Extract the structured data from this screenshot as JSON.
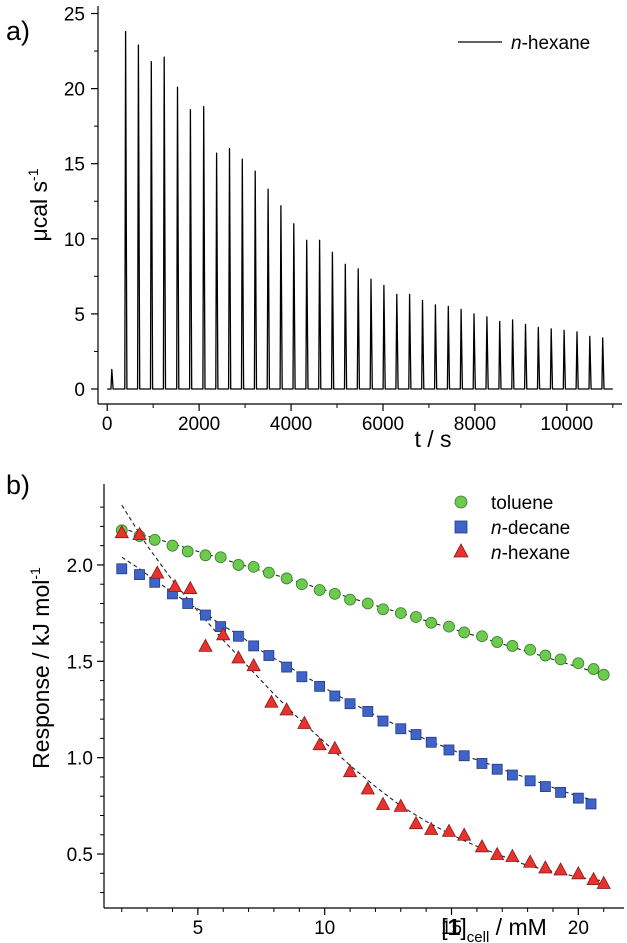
{
  "panel_a_label": "a)",
  "panel_b_label": "b)",
  "colors": {
    "toluene": "#6ccb4f",
    "n_decane": "#3f63c8",
    "n_hexane": "#e8322e",
    "line": "#000000"
  },
  "chart_data": [
    {
      "type": "line",
      "ylabel": "μcal s-1",
      "ylabel_parts": {
        "base": "μcal s",
        "sup": "-1"
      },
      "xlabel": "t / s",
      "xlim": [
        -200,
        11200
      ],
      "ylim": [
        -1,
        25.5
      ],
      "xticks": [
        0,
        2000,
        4000,
        6000,
        8000,
        10000
      ],
      "yticks": [
        0,
        5,
        10,
        15,
        20,
        25
      ],
      "grid": false,
      "legend_position": "top-right",
      "series": [
        {
          "name": "n-hexane",
          "name_parts": {
            "italic": "n",
            "rest": "-hexane"
          },
          "peak_times": [
            100,
            400,
            680,
            960,
            1240,
            1530,
            1810,
            2100,
            2380,
            2660,
            2940,
            3220,
            3500,
            3780,
            4060,
            4340,
            4620,
            4900,
            5180,
            5460,
            5740,
            6020,
            6300,
            6580,
            6860,
            7140,
            7420,
            7700,
            7980,
            8260,
            8540,
            8820,
            9100,
            9380,
            9660,
            9940,
            10220,
            10500,
            10780
          ],
          "peak_heights": [
            1.3,
            23.8,
            22.9,
            21.8,
            22.1,
            20.1,
            18.6,
            18.8,
            15.7,
            16.0,
            15.3,
            14.5,
            13.3,
            12.2,
            11.0,
            9.9,
            9.9,
            9.1,
            8.3,
            8.0,
            7.3,
            6.9,
            6.3,
            6.3,
            5.9,
            5.6,
            5.5,
            5.3,
            5.0,
            4.8,
            4.5,
            4.6,
            4.3,
            4.1,
            4.0,
            3.9,
            3.8,
            3.5,
            3.4
          ],
          "baseline": 0.0
        }
      ]
    },
    {
      "type": "scatter",
      "ylabel": "Response / kJ mol-1",
      "ylabel_parts": {
        "base": "Response / kJ mol",
        "sup": "-1"
      },
      "xlabel": "[1]cell / mM",
      "xlabel_parts": {
        "bracket_open": "[",
        "bold": "1",
        "bracket_close": "]",
        "sub": "cell",
        "rest": " / mM"
      },
      "xlim": [
        1.3,
        21.8
      ],
      "ylim": [
        0.22,
        2.42
      ],
      "xticks": [
        5,
        10,
        15,
        20
      ],
      "yticks": [
        0.5,
        1.0,
        1.5,
        2.0
      ],
      "ytick_labels": [
        "0.5",
        "1.0",
        "1.5",
        "2.0"
      ],
      "grid": false,
      "legend_position": "top-right",
      "series": [
        {
          "name": "toluene",
          "marker": "circle",
          "x": [
            2.0,
            2.7,
            3.3,
            4.0,
            4.6,
            5.3,
            5.9,
            6.6,
            7.2,
            7.8,
            8.5,
            9.1,
            9.8,
            10.4,
            11.0,
            11.7,
            12.3,
            13.0,
            13.6,
            14.2,
            14.9,
            15.5,
            16.2,
            16.8,
            17.4,
            18.1,
            18.7,
            19.3,
            20.0,
            20.6,
            21.0
          ],
          "y": [
            2.18,
            2.15,
            2.13,
            2.1,
            2.07,
            2.05,
            2.04,
            2.0,
            1.99,
            1.96,
            1.93,
            1.9,
            1.87,
            1.85,
            1.82,
            1.8,
            1.77,
            1.75,
            1.73,
            1.7,
            1.68,
            1.65,
            1.63,
            1.6,
            1.58,
            1.56,
            1.53,
            1.51,
            1.49,
            1.46,
            1.43
          ],
          "fit": [
            [
              2.0,
              2.19
            ],
            [
              21.0,
              1.43
            ]
          ]
        },
        {
          "name": "n-decane",
          "name_parts": {
            "italic": "n",
            "rest": "-decane"
          },
          "marker": "square",
          "x": [
            2.0,
            2.7,
            3.3,
            4.0,
            4.6,
            5.3,
            5.9,
            6.6,
            7.2,
            7.8,
            8.5,
            9.1,
            9.8,
            10.4,
            11.0,
            11.7,
            12.3,
            13.0,
            13.6,
            14.2,
            14.9,
            15.5,
            16.2,
            16.8,
            17.4,
            18.1,
            18.7,
            19.3,
            20.0,
            20.5
          ],
          "y": [
            1.98,
            1.95,
            1.91,
            1.85,
            1.8,
            1.74,
            1.68,
            1.63,
            1.58,
            1.53,
            1.47,
            1.42,
            1.37,
            1.32,
            1.28,
            1.24,
            1.19,
            1.15,
            1.12,
            1.08,
            1.04,
            1.01,
            0.97,
            0.94,
            0.91,
            0.88,
            0.85,
            0.82,
            0.79,
            0.76
          ],
          "fit": [
            [
              2.0,
              2.04
            ],
            [
              2.7,
              1.98
            ],
            [
              3.3,
              1.92
            ],
            [
              4.0,
              1.86
            ],
            [
              4.6,
              1.8
            ],
            [
              5.3,
              1.75
            ],
            [
              5.9,
              1.69
            ],
            [
              6.6,
              1.64
            ],
            [
              7.2,
              1.58
            ],
            [
              7.8,
              1.53
            ],
            [
              8.5,
              1.48
            ],
            [
              9.1,
              1.43
            ],
            [
              9.8,
              1.38
            ],
            [
              10.4,
              1.33
            ],
            [
              11.0,
              1.29
            ],
            [
              11.7,
              1.24
            ],
            [
              12.3,
              1.2
            ],
            [
              13.0,
              1.16
            ],
            [
              13.6,
              1.12
            ],
            [
              14.2,
              1.08
            ],
            [
              14.9,
              1.05
            ],
            [
              15.5,
              1.01
            ],
            [
              16.2,
              0.98
            ],
            [
              16.8,
              0.95
            ],
            [
              17.4,
              0.92
            ],
            [
              18.1,
              0.89
            ],
            [
              18.7,
              0.86
            ],
            [
              19.3,
              0.83
            ],
            [
              20.0,
              0.8
            ],
            [
              20.6,
              0.78
            ]
          ]
        },
        {
          "name": "n-hexane",
          "name_parts": {
            "italic": "n",
            "rest": "-hexane"
          },
          "marker": "triangle",
          "x": [
            2.0,
            2.7,
            3.4,
            4.1,
            4.7,
            5.3,
            6.0,
            6.6,
            7.2,
            7.9,
            8.5,
            9.2,
            9.8,
            10.4,
            11.0,
            11.7,
            12.3,
            13.0,
            13.6,
            14.2,
            14.9,
            15.5,
            16.2,
            16.8,
            17.4,
            18.1,
            18.7,
            19.3,
            20.0,
            20.6,
            21.0
          ],
          "y": [
            2.17,
            2.16,
            1.96,
            1.89,
            1.88,
            1.58,
            1.64,
            1.52,
            1.48,
            1.29,
            1.25,
            1.18,
            1.07,
            1.05,
            0.93,
            0.84,
            0.76,
            0.75,
            0.66,
            0.63,
            0.62,
            0.6,
            0.54,
            0.5,
            0.49,
            0.46,
            0.43,
            0.42,
            0.4,
            0.37,
            0.35
          ],
          "fit": [
            [
              2.0,
              2.31
            ],
            [
              3.0,
              2.1
            ],
            [
              4.0,
              1.92
            ],
            [
              5.0,
              1.76
            ],
            [
              6.0,
              1.61
            ],
            [
              7.0,
              1.47
            ],
            [
              8.0,
              1.33
            ],
            [
              9.0,
              1.2
            ],
            [
              10.0,
              1.08
            ],
            [
              11.0,
              0.96
            ],
            [
              12.0,
              0.85
            ],
            [
              13.0,
              0.75
            ],
            [
              14.0,
              0.67
            ],
            [
              15.0,
              0.6
            ],
            [
              16.0,
              0.54
            ],
            [
              17.0,
              0.49
            ],
            [
              18.0,
              0.44
            ],
            [
              19.0,
              0.41
            ],
            [
              20.0,
              0.38
            ],
            [
              21.0,
              0.36
            ]
          ]
        }
      ]
    }
  ]
}
